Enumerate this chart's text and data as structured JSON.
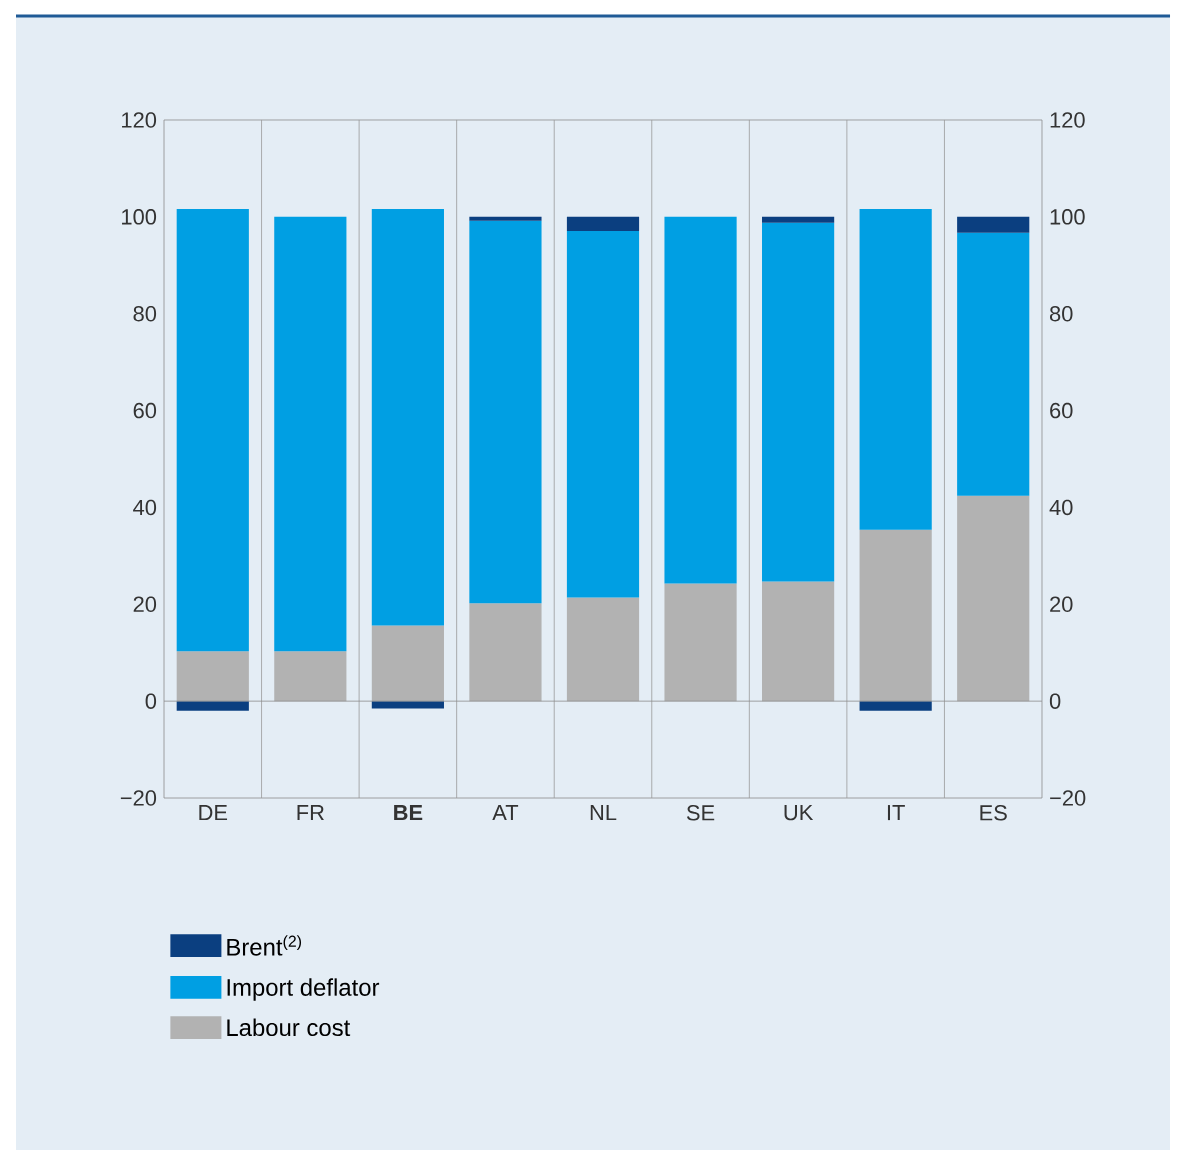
{
  "chart_data": {
    "type": "bar",
    "stacked": true,
    "categories": [
      "DE",
      "FR",
      "**BE**",
      "AT",
      "NL",
      "SE",
      "UK",
      "IT",
      "ES"
    ],
    "series": [
      {
        "name": "Labour cost",
        "color": "#b2b2b2",
        "values": [
          10.3,
          10.3,
          15.6,
          20.2,
          21.4,
          24.3,
          24.7,
          35.4,
          42.4
        ]
      },
      {
        "name": "Import deflator",
        "color": "#009fe3",
        "values": [
          91.3,
          89.7,
          86.0,
          79.0,
          75.7,
          75.7,
          74.1,
          66.2,
          54.3
        ]
      },
      {
        "name": "Brent$^{(2)}$",
        "color": "#0b3f80",
        "values": [
          -2.0,
          0,
          -1.5,
          0.8,
          2.9,
          0,
          1.2,
          -2.0,
          3.3
        ]
      }
    ],
    "ylim": [
      -20,
      120
    ],
    "yticks": [
      {
        "value": -20,
        "label": "−20"
      },
      0,
      20,
      40,
      60,
      80,
      100,
      120
    ],
    "y2lim": [
      -20,
      120
    ],
    "y2ticks": [
      {
        "value": -20,
        "label": "−20"
      },
      0,
      20,
      40,
      60,
      80,
      100,
      120
    ],
    "grid": "x",
    "legend": "bottom"
  }
}
